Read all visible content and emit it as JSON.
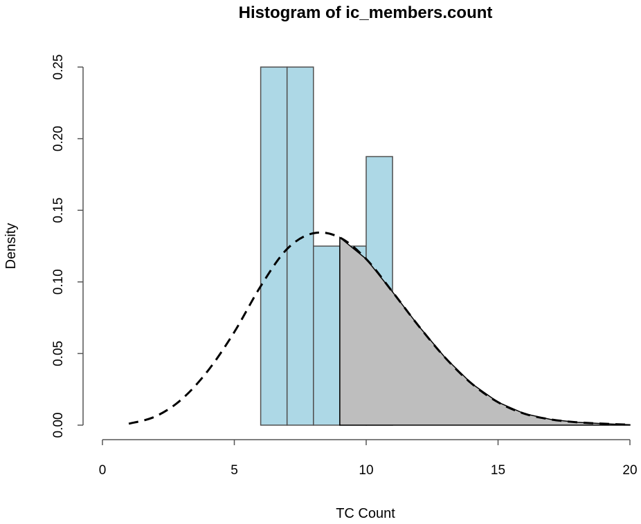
{
  "chart_data": {
    "type": "bar",
    "subtype": "histogram-with-density",
    "title": "Histogram of ic_members.count",
    "xlabel": "TC Count",
    "ylabel": "Density",
    "xlim": [
      0,
      20
    ],
    "ylim": [
      0,
      0.25
    ],
    "x_ticks": [
      0,
      5,
      10,
      15,
      20
    ],
    "x_tick_labels": [
      "0",
      "5",
      "10",
      "15",
      "20"
    ],
    "y_ticks": [
      0,
      0.05,
      0.1,
      0.15,
      0.2,
      0.25
    ],
    "y_tick_labels": [
      "0.00",
      "0.05",
      "0.10",
      "0.15",
      "0.20",
      "0.25"
    ],
    "bins": [
      {
        "start": 6,
        "end": 7,
        "density": 0.25
      },
      {
        "start": 7,
        "end": 8,
        "density": 0.25
      },
      {
        "start": 8,
        "end": 9,
        "density": 0.125
      },
      {
        "start": 9,
        "end": 10,
        "density": 0.125
      },
      {
        "start": 10,
        "end": 11,
        "density": 0.1875
      }
    ],
    "density_curve": {
      "style": "dashed",
      "x": [
        1,
        2,
        3,
        4,
        5,
        6,
        7,
        8,
        9,
        10,
        11,
        12,
        13,
        14,
        15,
        16,
        17,
        18,
        19,
        20
      ],
      "y": [
        0.001,
        0.006,
        0.018,
        0.038,
        0.065,
        0.097,
        0.123,
        0.134,
        0.131,
        0.116,
        0.093,
        0.069,
        0.047,
        0.029,
        0.016,
        0.008,
        0.004,
        0.002,
        0.001,
        0.0003
      ]
    },
    "shaded_region": {
      "from": 9,
      "to": 20
    },
    "colors": {
      "bar_fill": "#ADD8E6",
      "bar_stroke": "#4F4F4F",
      "shade_fill": "#BEBEBE",
      "curve": "#000000",
      "axis": "#555555"
    }
  }
}
